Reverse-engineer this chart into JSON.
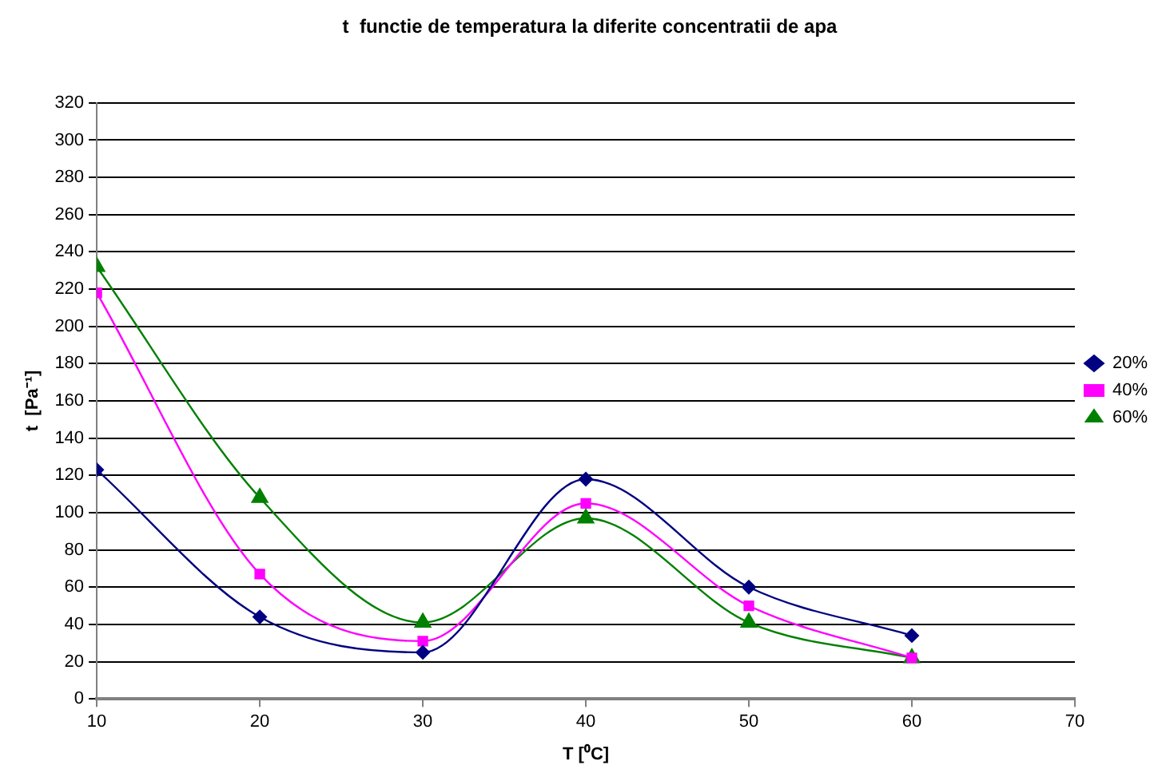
{
  "chart_data": {
    "type": "line",
    "title": "t  functie de temperatura la diferite concentratii de apa",
    "xlabel": "T [⁰C]",
    "ylabel": "t  [Pa⁻¹]",
    "x": [
      10,
      20,
      30,
      40,
      50,
      60
    ],
    "series": [
      {
        "name": "20%",
        "color": "#000080",
        "marker": "diamond",
        "values": [
          123,
          44,
          25,
          118,
          60,
          34
        ]
      },
      {
        "name": "40%",
        "color": "#ff00ff",
        "marker": "square",
        "values": [
          218,
          67,
          31,
          105,
          50,
          22
        ]
      },
      {
        "name": "60%",
        "color": "#008000",
        "marker": "triangle",
        "values": [
          232,
          108,
          41,
          97,
          41,
          22
        ]
      }
    ],
    "xlim": [
      10,
      70
    ],
    "xticks": [
      10,
      20,
      30,
      40,
      50,
      60,
      70
    ],
    "ylim": [
      0,
      320
    ],
    "yticks": [
      0,
      20,
      40,
      60,
      80,
      100,
      120,
      140,
      160,
      180,
      200,
      220,
      240,
      260,
      280,
      300,
      320
    ],
    "grid": "y",
    "legend": "right",
    "line_style": "solid"
  }
}
